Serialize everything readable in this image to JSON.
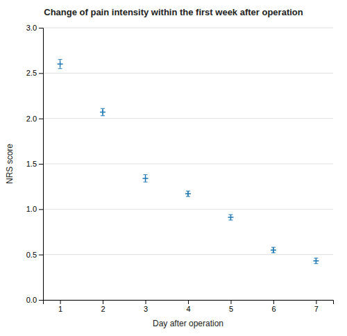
{
  "chart_data": {
    "type": "scatter",
    "title": "Change of pain intensity within the first week after operation",
    "xlabel": "Day after operation",
    "ylabel": "NRS score",
    "x": [
      1,
      2,
      3,
      4,
      5,
      6,
      7
    ],
    "values": [
      2.6,
      2.07,
      1.34,
      1.17,
      0.91,
      0.55,
      0.43
    ],
    "errors": [
      0.05,
      0.04,
      0.04,
      0.03,
      0.03,
      0.03,
      0.03
    ],
    "xlim": [
      0.6,
      7.4
    ],
    "ylim": [
      0,
      3
    ],
    "xticks": [
      1,
      2,
      3,
      4,
      5,
      6,
      7
    ],
    "yticks": [
      {
        "value": 0,
        "label": "0.0"
      },
      0.5,
      {
        "value": 1,
        "label": "1.0"
      },
      1.5,
      {
        "value": 2,
        "label": "2.0"
      },
      2.5,
      {
        "value": 3,
        "label": "3.0"
      }
    ],
    "marker": "plus",
    "grid": "y"
  }
}
